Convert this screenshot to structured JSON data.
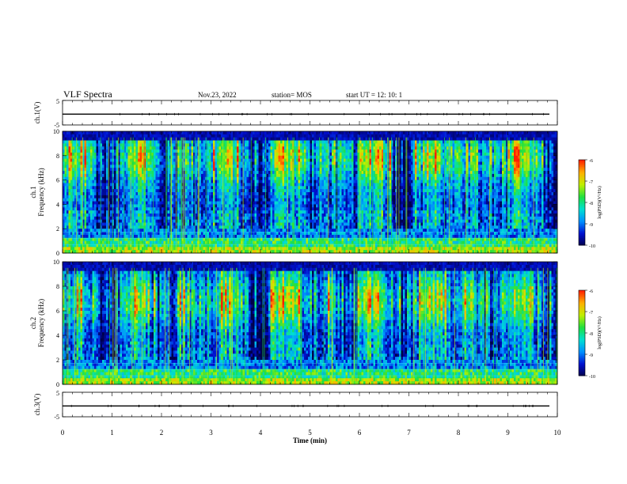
{
  "header": {
    "title": "VLF Spectra",
    "date": "Nov.23, 2022",
    "station": "station= MOS",
    "start": "start  UT  =   12: 10: 1"
  },
  "chart_data": [
    {
      "type": "line",
      "panel": "ch1-waveform",
      "ylabel": "ch.1(V)",
      "yticks": [
        "5",
        "-5"
      ],
      "ylim": [
        -5,
        5
      ],
      "xlim": [
        0,
        10
      ]
    },
    {
      "type": "heatmap",
      "panel": "ch1-spectrogram",
      "ylabel": "ch.1\nFrequency (kHz)",
      "yticks": [
        "0",
        "2",
        "4",
        "6",
        "8",
        "10"
      ],
      "ylim": [
        0,
        10
      ],
      "xlim": [
        0,
        10
      ],
      "colorbar": {
        "label": "log(PSD)(V²/Hz)",
        "ticks": [
          "-6",
          "-7",
          "-8",
          "-9",
          "-10"
        ],
        "range": [
          -10,
          -6
        ]
      }
    },
    {
      "type": "heatmap",
      "panel": "ch2-spectrogram",
      "ylabel": "ch.2\nFrequency (kHz)",
      "yticks": [
        "0",
        "2",
        "4",
        "6",
        "8",
        "10"
      ],
      "ylim": [
        0,
        10
      ],
      "xlim": [
        0,
        10
      ],
      "colorbar": {
        "label": "log(PSD)(V²/Hz)",
        "ticks": [
          "-6",
          "-7",
          "-8",
          "-9",
          "-10"
        ],
        "range": [
          -10,
          -6
        ]
      }
    },
    {
      "type": "line",
      "panel": "ch3-waveform",
      "ylabel": "ch.3(V)",
      "yticks": [
        "5",
        "-5"
      ],
      "ylim": [
        -5,
        5
      ],
      "xlim": [
        0,
        10
      ],
      "xlabel": "Time  (min)",
      "xticks": [
        "0",
        "1",
        "2",
        "3",
        "4",
        "5",
        "6",
        "7",
        "8",
        "9",
        "10"
      ]
    }
  ],
  "colors": {
    "colormap": [
      "#00004a",
      "#0010d0",
      "#0090ff",
      "#00e0d0",
      "#20e040",
      "#c0f000",
      "#ffb000",
      "#ff2000"
    ]
  }
}
